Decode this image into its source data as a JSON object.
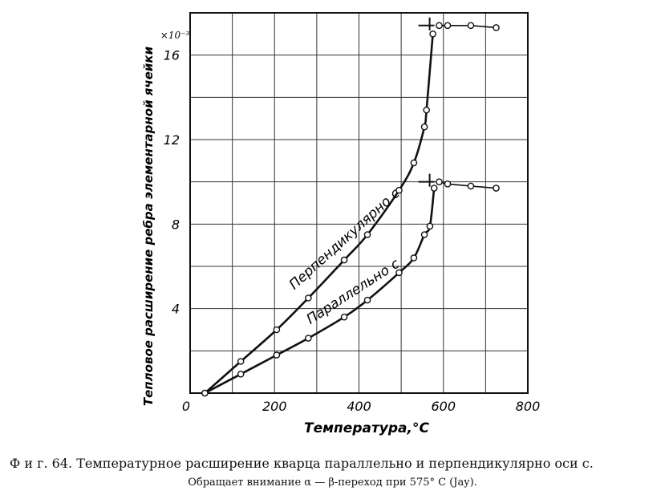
{
  "chart_data": {
    "type": "line",
    "ylabel": "Тепловое расширение ребра элементарной ячейки",
    "xlabel": "Температура,°С",
    "y_multiplier": "×10⁻³",
    "xlim": [
      0,
      800
    ],
    "ylim": [
      0,
      18
    ],
    "x_ticks": [
      0,
      200,
      400,
      600,
      800
    ],
    "y_ticks": [
      4,
      8,
      12,
      16
    ],
    "grid": true,
    "transition_temperature": 575,
    "series": [
      {
        "name": "Перпендикулярно с",
        "x": [
          35,
          120,
          205,
          280,
          365,
          420,
          495,
          530,
          555,
          560,
          575,
          590,
          610,
          665,
          725
        ],
        "y": [
          0.0,
          1.5,
          3.0,
          4.5,
          6.3,
          7.5,
          9.6,
          10.9,
          12.6,
          13.4,
          17.0,
          17.4,
          17.4,
          17.4,
          17.3
        ]
      },
      {
        "name": "Параллельно с",
        "x": [
          35,
          120,
          205,
          280,
          365,
          420,
          495,
          530,
          555,
          568,
          578,
          590,
          610,
          665,
          725
        ],
        "y": [
          0.0,
          0.9,
          1.8,
          2.6,
          3.6,
          4.4,
          5.7,
          6.4,
          7.5,
          7.9,
          9.7,
          10.0,
          9.9,
          9.8,
          9.7
        ]
      }
    ]
  },
  "caption": {
    "line1": "Ф и г.  64.  Температурное расширение кварца параллельно и перпендикулярно оси с.",
    "line2": "Обращает внимание  α — β-переход  при  575° С  (Jay)."
  }
}
